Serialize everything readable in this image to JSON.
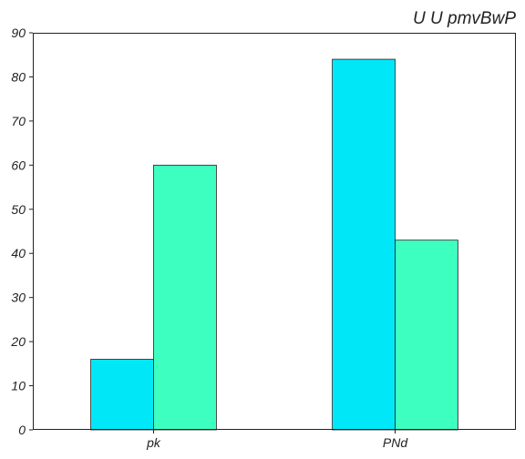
{
  "chart_data": {
    "type": "bar",
    "title": "U U pmvBwP",
    "xlabel": "",
    "ylabel": "",
    "categories": [
      "pk",
      "PNd"
    ],
    "series": [
      {
        "color": "#00e8f8",
        "values": [
          16,
          84
        ]
      },
      {
        "color": "#3dffc0",
        "values": [
          60,
          43
        ]
      }
    ],
    "ylim": [
      0,
      90
    ],
    "yticks": [
      0,
      10,
      20,
      30,
      40,
      50,
      60,
      70,
      80,
      90
    ],
    "grid": false,
    "legend": "none"
  }
}
